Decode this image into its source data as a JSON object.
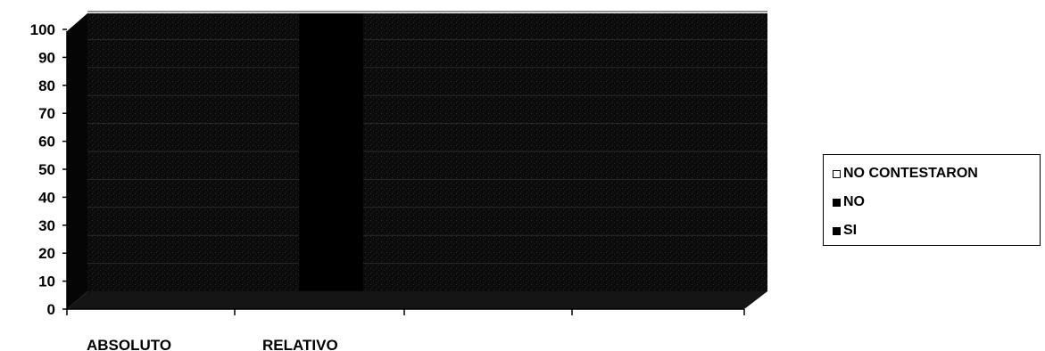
{
  "chart_data": {
    "type": "bar",
    "categories": [
      "ABSOLUTO",
      "RELATIVO"
    ],
    "series": [
      {
        "name": "SI",
        "values": [
          null,
          null
        ]
      },
      {
        "name": "NO",
        "values": [
          null,
          null
        ]
      },
      {
        "name": "NO CONTESTARON",
        "values": [
          null,
          null
        ]
      }
    ],
    "y_ticks": [
      "0",
      "10",
      "20",
      "30",
      "40",
      "50",
      "60",
      "70",
      "80",
      "90",
      "100"
    ],
    "ylim": [
      0,
      100
    ],
    "grid": true,
    "legend_position": "right",
    "colors": {
      "SI": "#000000",
      "NO": "#000000",
      "NO CONTESTARON": "#ffffff",
      "plot_area": "#0a0a0a",
      "texture": "#3a3a3a"
    }
  },
  "legend": {
    "items": [
      {
        "label": "NO CONTESTARON",
        "swatch": "#ffffff"
      },
      {
        "label": "NO",
        "swatch": "#000000"
      },
      {
        "label": "SI",
        "swatch": "#000000"
      }
    ]
  }
}
